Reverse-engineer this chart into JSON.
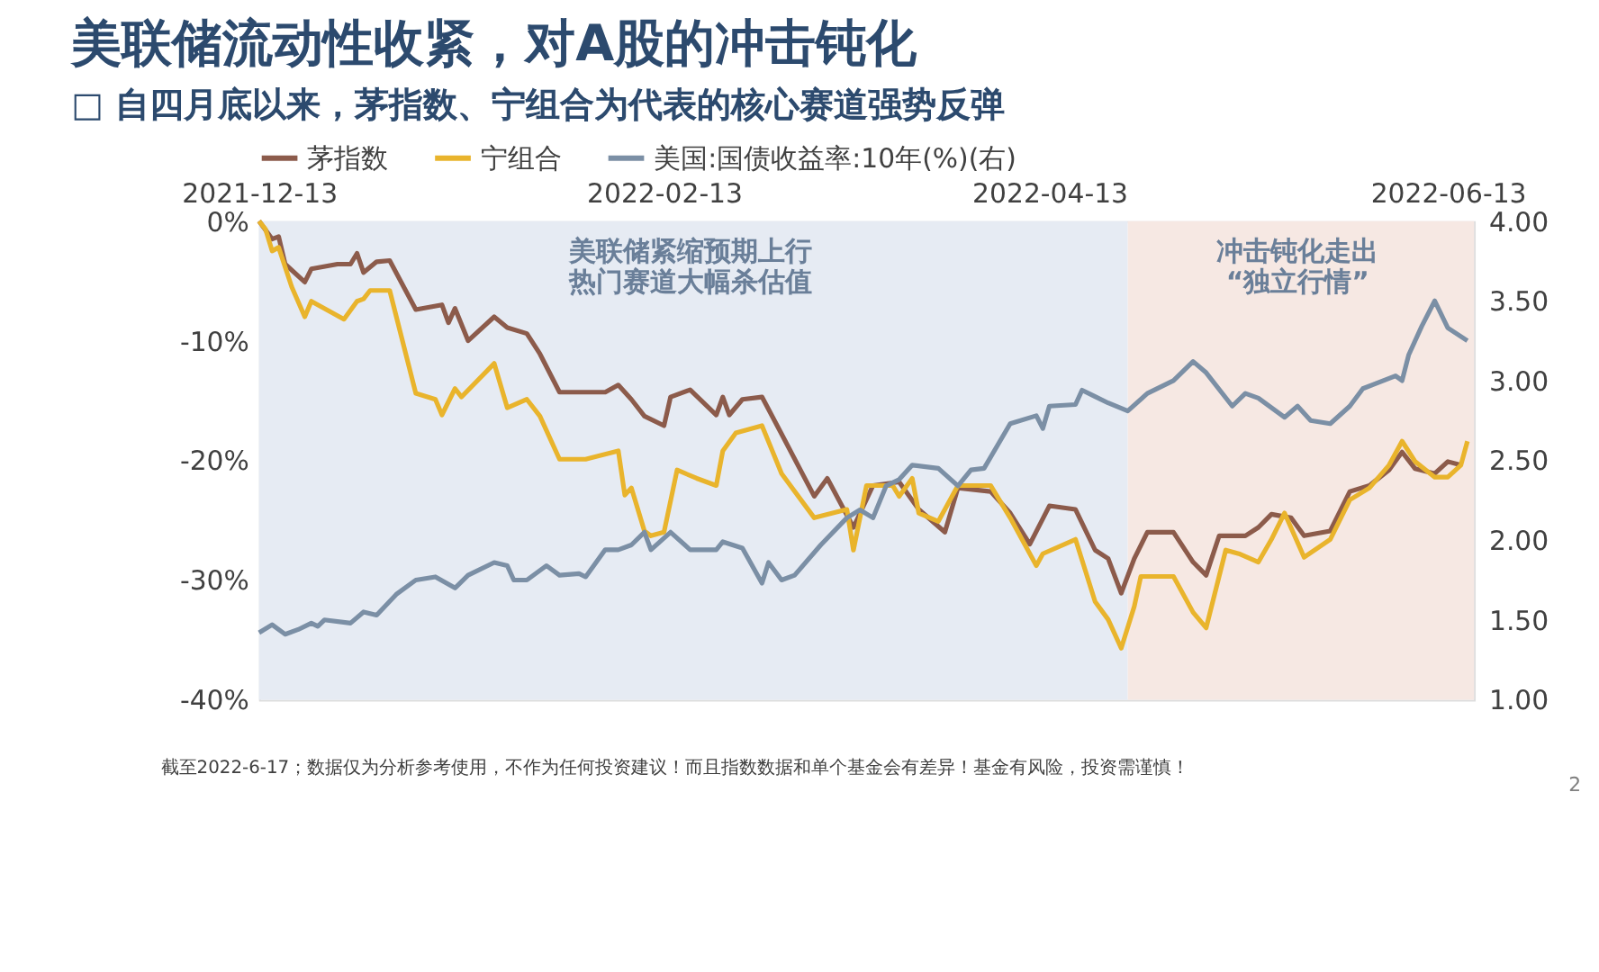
{
  "chart_data": {
    "type": "line",
    "title": "美联储流动性收紧，对A股的冲击钝化",
    "subtitle": "□ 自四月底以来，茅指数、宁组合为代表的核心赛道强势反弹",
    "annotations": [
      "截至2022-6-17；数据仅为分析参考使用，不作为任何投资建议！而且指数数据和单个基金会有差异！基金有风险，投资需谨慎！",
      "2"
    ],
    "xlim": [
      "2021-12-13",
      "2022-06-17"
    ],
    "xticks": [
      {
        "value": "2021-12-13",
        "label": "2021-12-13"
      },
      {
        "value": "2022-02-13",
        "label": "2022-02-13"
      },
      {
        "value": "2022-04-13",
        "label": "2022-04-13"
      },
      {
        "value": "2022-06-13",
        "label": "2022-06-13"
      }
    ],
    "ylim": [
      -40,
      0
    ],
    "yticks": [
      {
        "value": -40,
        "label": "-40%"
      },
      {
        "value": -30,
        "label": "-30%"
      },
      {
        "value": -20,
        "label": "-20%"
      },
      {
        "value": -10,
        "label": "-10%"
      },
      {
        "value": 0,
        "label": "0%"
      }
    ],
    "y2lim": [
      1,
      4
    ],
    "y2ticks": [
      {
        "value": 1,
        "label": "1.00"
      },
      {
        "value": 1.5,
        "label": "1.50"
      },
      {
        "value": 2,
        "label": "2.00"
      },
      {
        "value": 2.5,
        "label": "2.50"
      },
      {
        "value": 3,
        "label": "3.00"
      },
      {
        "value": 3.5,
        "label": "3.50"
      },
      {
        "value": 4,
        "label": "4.00"
      }
    ],
    "legend": "top",
    "grid": false,
    "line_style": "solid",
    "marker": "none",
    "bands": [
      {
        "axis": "x",
        "from": "2021-12-13",
        "to": "2022-04-25",
        "label": "美联储紧缩预期上行热门赛道大幅杀估值",
        "color": "#e6ebf3"
      },
      {
        "axis": "x",
        "from": "2022-04-25",
        "to": "2022-06-17",
        "label": "冲击钝化走出“独立行情”",
        "color": "#f6e8e3"
      }
    ],
    "series": [
      {
        "name": "茅指数",
        "color": "#8c5b4b",
        "x": [
          "2021-12-13",
          "2021-12-15",
          "2021-12-16",
          "2021-12-17",
          "2021-12-20",
          "2021-12-21",
          "2021-12-25",
          "2021-12-27",
          "2021-12-28",
          "2021-12-29",
          "2021-12-31",
          "2022-01-02",
          "2022-01-06",
          "2022-01-10",
          "2022-01-11",
          "2022-01-12",
          "2022-01-14",
          "2022-01-18",
          "2022-01-20",
          "2022-01-23",
          "2022-01-25",
          "2022-01-28",
          "2022-02-04",
          "2022-02-06",
          "2022-02-08",
          "2022-02-10",
          "2022-02-13",
          "2022-02-14",
          "2022-02-17",
          "2022-02-21",
          "2022-02-22",
          "2022-02-23",
          "2022-02-25",
          "2022-02-28",
          "2022-03-03",
          "2022-03-08",
          "2022-03-10",
          "2022-03-14",
          "2022-03-17",
          "2022-03-21",
          "2022-03-24",
          "2022-03-28",
          "2022-03-30",
          "2022-04-04",
          "2022-04-07",
          "2022-04-10",
          "2022-04-13",
          "2022-04-17",
          "2022-04-20",
          "2022-04-22",
          "2022-04-24",
          "2022-04-26",
          "2022-04-28",
          "2022-05-02",
          "2022-05-05",
          "2022-05-07",
          "2022-05-09",
          "2022-05-13",
          "2022-05-15",
          "2022-05-17",
          "2022-05-20",
          "2022-05-22",
          "2022-05-26",
          "2022-05-29",
          "2022-06-01",
          "2022-06-04",
          "2022-06-06",
          "2022-06-08",
          "2022-06-11",
          "2022-06-13",
          "2022-06-15"
        ],
        "values": [
          0,
          -1.5,
          -1.3,
          -3.6,
          -5.1,
          -4.0,
          -3.6,
          -3.6,
          -2.7,
          -4.3,
          -3.4,
          -3.3,
          -7.4,
          -7.0,
          -8.5,
          -7.3,
          -10.0,
          -8.0,
          -8.9,
          -9.4,
          -11.1,
          -14.3,
          -14.3,
          -13.7,
          -14.9,
          -16.3,
          -17.1,
          -14.7,
          -14.1,
          -16.2,
          -14.7,
          -16.2,
          -14.9,
          -14.7,
          -17.8,
          -23.0,
          -21.5,
          -25.6,
          -22.1,
          -21.8,
          -24.1,
          -26.0,
          -22.3,
          -22.6,
          -24.4,
          -27.0,
          -23.8,
          -24.1,
          -27.5,
          -28.2,
          -31.1,
          -28.2,
          -26.0,
          -26.0,
          -28.5,
          -29.6,
          -26.3,
          -26.3,
          -25.6,
          -24.5,
          -24.8,
          -26.3,
          -25.9,
          -22.6,
          -22.1,
          -20.8,
          -19.3,
          -20.7,
          -21.1,
          -20.1,
          -20.4
        ]
      },
      {
        "name": "宁组合",
        "color": "#e9b42c",
        "x": [
          "2021-12-13",
          "2021-12-14",
          "2021-12-15",
          "2021-12-16",
          "2021-12-18",
          "2021-12-20",
          "2021-12-21",
          "2021-12-26",
          "2021-12-28",
          "2021-12-29",
          "2021-12-30",
          "2022-01-02",
          "2022-01-06",
          "2022-01-09",
          "2022-01-10",
          "2022-01-12",
          "2022-01-13",
          "2022-01-18",
          "2022-01-20",
          "2022-01-23",
          "2022-01-25",
          "2022-01-28",
          "2022-02-01",
          "2022-02-06",
          "2022-02-07",
          "2022-02-08",
          "2022-02-10",
          "2022-02-11",
          "2022-02-13",
          "2022-02-15",
          "2022-02-18",
          "2022-02-21",
          "2022-02-22",
          "2022-02-24",
          "2022-02-28",
          "2022-03-03",
          "2022-03-08",
          "2022-03-13",
          "2022-03-14",
          "2022-03-16",
          "2022-03-20",
          "2022-03-21",
          "2022-03-23",
          "2022-03-24",
          "2022-03-27",
          "2022-03-30",
          "2022-04-04",
          "2022-04-07",
          "2022-04-11",
          "2022-04-12",
          "2022-04-17",
          "2022-04-20",
          "2022-04-22",
          "2022-04-24",
          "2022-04-26",
          "2022-04-27",
          "2022-05-02",
          "2022-05-05",
          "2022-05-07",
          "2022-05-10",
          "2022-05-12",
          "2022-05-15",
          "2022-05-17",
          "2022-05-19",
          "2022-05-22",
          "2022-05-26",
          "2022-05-29",
          "2022-06-01",
          "2022-06-04",
          "2022-06-06",
          "2022-06-08",
          "2022-06-11",
          "2022-06-13",
          "2022-06-15",
          "2022-06-16"
        ],
        "values": [
          0,
          -0.7,
          -2.5,
          -2.2,
          -5.5,
          -8.0,
          -6.7,
          -8.2,
          -6.7,
          -6.5,
          -5.8,
          -5.8,
          -14.4,
          -14.9,
          -16.2,
          -14.0,
          -14.7,
          -11.9,
          -15.6,
          -14.9,
          -16.3,
          -19.9,
          -19.9,
          -19.2,
          -22.9,
          -22.3,
          -25.9,
          -26.3,
          -26.0,
          -20.8,
          -21.5,
          -22.1,
          -19.2,
          -17.7,
          -17.1,
          -21.1,
          -24.8,
          -24.1,
          -27.5,
          -22.1,
          -22.1,
          -23.0,
          -21.5,
          -24.4,
          -25.1,
          -22.1,
          -22.1,
          -24.8,
          -28.8,
          -27.8,
          -26.6,
          -31.8,
          -33.3,
          -35.7,
          -32.2,
          -29.7,
          -29.7,
          -32.7,
          -34.0,
          -27.5,
          -27.8,
          -28.5,
          -26.6,
          -24.4,
          -28.1,
          -26.6,
          -23.3,
          -22.3,
          -20.4,
          -18.4,
          -20.1,
          -21.4,
          -21.4,
          -20.4,
          -18.4
        ]
      },
      {
        "name": "美国:国债收益率:10年(%)(右)",
        "color": "#7b8fa5",
        "axis": "y2",
        "x": [
          "2021-12-13",
          "2021-12-15",
          "2021-12-17",
          "2021-12-19",
          "2021-12-21",
          "2021-12-22",
          "2021-12-23",
          "2021-12-27",
          "2021-12-29",
          "2021-12-31",
          "2022-01-03",
          "2022-01-06",
          "2022-01-09",
          "2022-01-12",
          "2022-01-14",
          "2022-01-18",
          "2022-01-20",
          "2022-01-21",
          "2022-01-23",
          "2022-01-26",
          "2022-01-28",
          "2022-01-31",
          "2022-02-01",
          "2022-02-04",
          "2022-02-06",
          "2022-02-08",
          "2022-02-10",
          "2022-02-11",
          "2022-02-14",
          "2022-02-17",
          "2022-02-21",
          "2022-02-22",
          "2022-02-25",
          "2022-02-28",
          "2022-03-01",
          "2022-03-03",
          "2022-03-05",
          "2022-03-09",
          "2022-03-13",
          "2022-03-15",
          "2022-03-17",
          "2022-03-19",
          "2022-03-21",
          "2022-03-23",
          "2022-03-27",
          "2022-03-30",
          "2022-04-01",
          "2022-04-03",
          "2022-04-07",
          "2022-04-11",
          "2022-04-12",
          "2022-04-13",
          "2022-04-17",
          "2022-04-18",
          "2022-04-20",
          "2022-04-22",
          "2022-04-25",
          "2022-04-28",
          "2022-05-02",
          "2022-05-05",
          "2022-05-07",
          "2022-05-11",
          "2022-05-13",
          "2022-05-15",
          "2022-05-19",
          "2022-05-21",
          "2022-05-23",
          "2022-05-26",
          "2022-05-29",
          "2022-05-31",
          "2022-06-05",
          "2022-06-06",
          "2022-06-07",
          "2022-06-09",
          "2022-06-11",
          "2022-06-13",
          "2022-06-16"
        ],
        "values": [
          1.42,
          1.47,
          1.41,
          1.44,
          1.48,
          1.46,
          1.5,
          1.48,
          1.55,
          1.53,
          1.66,
          1.75,
          1.77,
          1.7,
          1.78,
          1.86,
          1.84,
          1.75,
          1.75,
          1.84,
          1.78,
          1.79,
          1.77,
          1.94,
          1.94,
          1.97,
          2.05,
          1.94,
          2.05,
          1.94,
          1.94,
          1.99,
          1.95,
          1.73,
          1.86,
          1.75,
          1.78,
          1.97,
          2.14,
          2.19,
          2.14,
          2.34,
          2.38,
          2.47,
          2.45,
          2.34,
          2.44,
          2.45,
          2.73,
          2.78,
          2.7,
          2.84,
          2.85,
          2.94,
          2.9,
          2.86,
          2.81,
          2.92,
          3.0,
          3.12,
          3.05,
          2.84,
          2.92,
          2.89,
          2.77,
          2.84,
          2.75,
          2.73,
          2.84,
          2.95,
          3.03,
          3.0,
          3.16,
          3.34,
          3.5,
          3.33,
          3.25
        ]
      }
    ]
  }
}
